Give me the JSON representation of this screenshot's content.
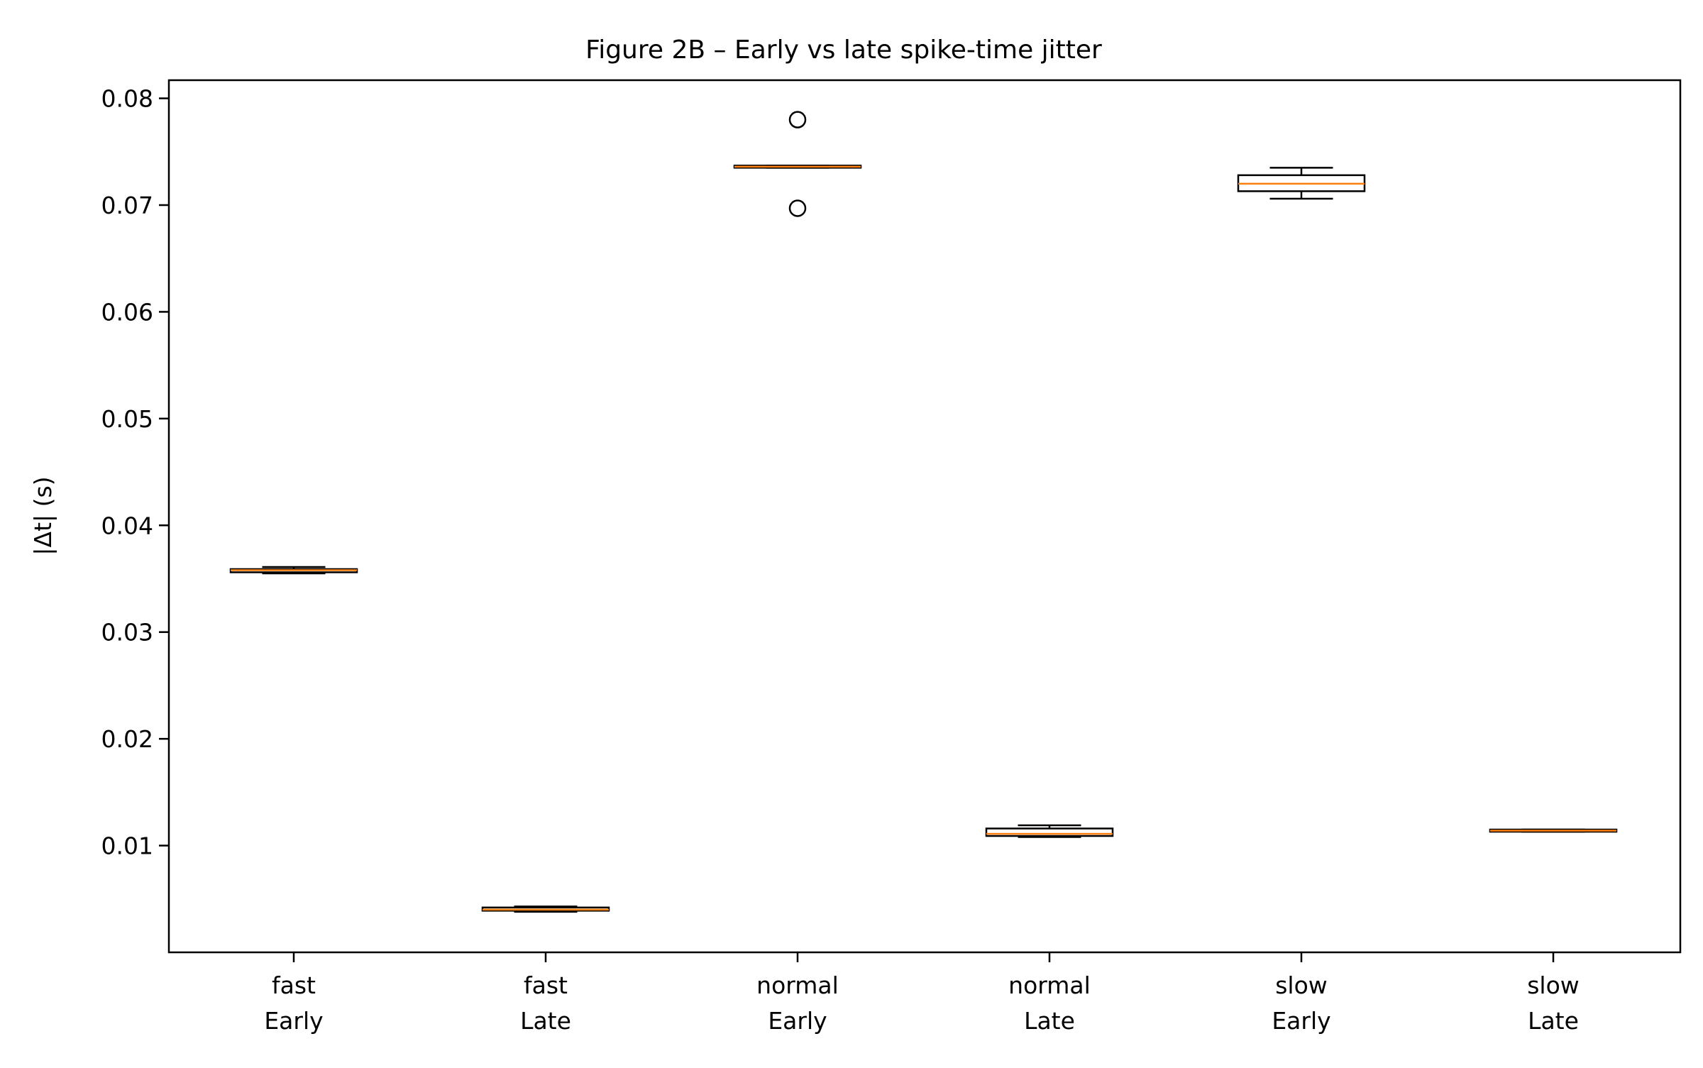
{
  "chart_data": {
    "type": "box",
    "title": "Figure 2B – Early vs late spike-time jitter",
    "xlabel": "",
    "ylabel": "|Δt|  (s)",
    "ylim": [
      0.0,
      0.0817
    ],
    "yticks": [
      0.01,
      0.02,
      0.03,
      0.04,
      0.05,
      0.06,
      0.07,
      0.08
    ],
    "ytick_labels": [
      "0.01",
      "0.02",
      "0.03",
      "0.04",
      "0.05",
      "0.06",
      "0.07",
      "0.08"
    ],
    "grid": false,
    "colors": {
      "box_edge": "#000000",
      "median": "#ff7f0e",
      "frame": "#000000",
      "flier": "#000000"
    },
    "boxes": [
      {
        "label_lines": [
          "fast",
          "Early"
        ],
        "whisker_low": 0.0355,
        "q1": 0.0356,
        "median": 0.0358,
        "q3": 0.0359,
        "whisker_high": 0.0361,
        "fliers": []
      },
      {
        "label_lines": [
          "fast",
          "Late"
        ],
        "whisker_low": 0.0038,
        "q1": 0.0039,
        "median": 0.004,
        "q3": 0.0042,
        "whisker_high": 0.0043,
        "fliers": []
      },
      {
        "label_lines": [
          "normal",
          "Early"
        ],
        "whisker_low": 0.0735,
        "q1": 0.0735,
        "median": 0.0736,
        "q3": 0.0737,
        "whisker_high": 0.0737,
        "fliers": [
          0.078,
          0.0697
        ]
      },
      {
        "label_lines": [
          "normal",
          "Late"
        ],
        "whisker_low": 0.0108,
        "q1": 0.0109,
        "median": 0.0111,
        "q3": 0.0116,
        "whisker_high": 0.0119,
        "fliers": []
      },
      {
        "label_lines": [
          "slow",
          "Early"
        ],
        "whisker_low": 0.0706,
        "q1": 0.0713,
        "median": 0.072,
        "q3": 0.0728,
        "whisker_high": 0.0735,
        "fliers": []
      },
      {
        "label_lines": [
          "slow",
          "Late"
        ],
        "whisker_low": 0.0113,
        "q1": 0.0113,
        "median": 0.0114,
        "q3": 0.0115,
        "whisker_high": 0.0115,
        "fliers": []
      }
    ]
  }
}
